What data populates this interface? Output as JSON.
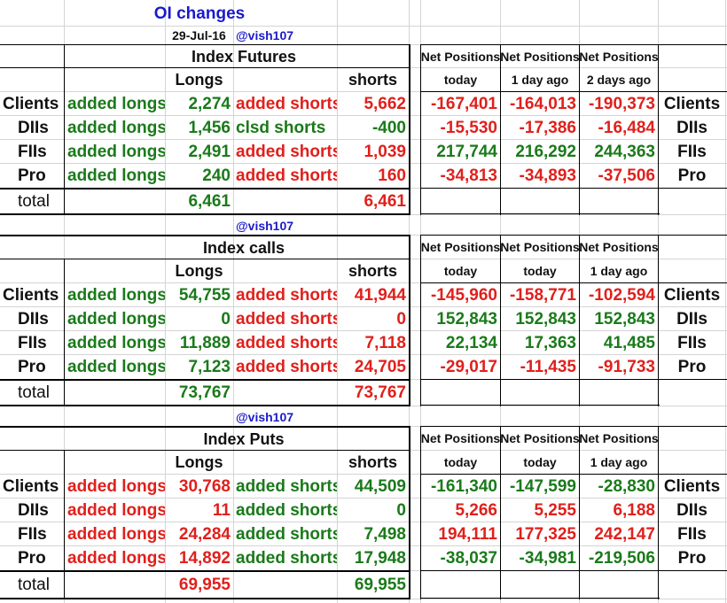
{
  "title": "OI changes",
  "date": "29-Jul-16",
  "handle": "@vish107",
  "colors": {
    "green": "#1a7a1a",
    "red": "#e0201c",
    "blue": "#1a1acc"
  },
  "sections": [
    {
      "name": "Index Futures",
      "longs_header": "Longs",
      "shorts_header": "shorts",
      "np_header": "Net Positions",
      "np_sub": [
        "today",
        "1 day ago",
        "2 days ago"
      ],
      "rows": [
        {
          "label": "Clients",
          "long_type": "added longs",
          "long_val": "2,274",
          "long_color": "green",
          "short_type": "added shorts",
          "short_val": "5,662",
          "short_color": "red",
          "np": [
            "-167,401",
            "-164,013",
            "-190,373"
          ],
          "np_colors": [
            "red",
            "red",
            "red"
          ]
        },
        {
          "label": "DIIs",
          "long_type": "added longs",
          "long_val": "1,456",
          "long_color": "green",
          "short_type": "clsd shorts",
          "short_val": "-400",
          "short_color": "green",
          "np": [
            "-15,530",
            "-17,386",
            "-16,484"
          ],
          "np_colors": [
            "red",
            "red",
            "red"
          ]
        },
        {
          "label": "FIIs",
          "long_type": "added longs",
          "long_val": "2,491",
          "long_color": "green",
          "short_type": "added shorts",
          "short_val": "1,039",
          "short_color": "red",
          "np": [
            "217,744",
            "216,292",
            "244,363"
          ],
          "np_colors": [
            "green",
            "green",
            "green"
          ]
        },
        {
          "label": "Pro",
          "long_type": "added longs",
          "long_val": "240",
          "long_color": "green",
          "short_type": "added shorts",
          "short_val": "160",
          "short_color": "red",
          "np": [
            "-34,813",
            "-34,893",
            "-37,506"
          ],
          "np_colors": [
            "red",
            "red",
            "red"
          ]
        }
      ],
      "total_label": "total",
      "total_long": "6,461",
      "total_long_color": "green",
      "total_short": "6,461",
      "total_short_color": "red"
    },
    {
      "name": "Index calls",
      "longs_header": "Longs",
      "shorts_header": "shorts",
      "np_header": "Net Positions",
      "np_sub": [
        "today",
        "today",
        "1 day ago"
      ],
      "rows": [
        {
          "label": "Clients",
          "long_type": "added longs",
          "long_val": "54,755",
          "long_color": "green",
          "short_type": "added shorts",
          "short_val": "41,944",
          "short_color": "red",
          "np": [
            "-145,960",
            "-158,771",
            "-102,594"
          ],
          "np_colors": [
            "red",
            "red",
            "red"
          ]
        },
        {
          "label": "DIIs",
          "long_type": "added longs",
          "long_val": "0",
          "long_color": "green",
          "short_type": "added shorts",
          "short_val": "0",
          "short_color": "red",
          "np": [
            "152,843",
            "152,843",
            "152,843"
          ],
          "np_colors": [
            "green",
            "green",
            "green"
          ]
        },
        {
          "label": "FIIs",
          "long_type": "added longs",
          "long_val": "11,889",
          "long_color": "green",
          "short_type": "added shorts",
          "short_val": "7,118",
          "short_color": "red",
          "np": [
            "22,134",
            "17,363",
            "41,485"
          ],
          "np_colors": [
            "green",
            "green",
            "green"
          ]
        },
        {
          "label": "Pro",
          "long_type": "added longs",
          "long_val": "7,123",
          "long_color": "green",
          "short_type": "added shorts",
          "short_val": "24,705",
          "short_color": "red",
          "np": [
            "-29,017",
            "-11,435",
            "-91,733"
          ],
          "np_colors": [
            "red",
            "red",
            "red"
          ]
        }
      ],
      "total_label": "total",
      "total_long": "73,767",
      "total_long_color": "green",
      "total_short": "73,767",
      "total_short_color": "red"
    },
    {
      "name": "Index Puts",
      "longs_header": "Longs",
      "shorts_header": "shorts",
      "np_header": "Net Positions",
      "np_sub": [
        "today",
        "today",
        "1 day ago"
      ],
      "rows": [
        {
          "label": "Clients",
          "long_type": "added longs",
          "long_val": "30,768",
          "long_color": "red",
          "short_type": "added shorts",
          "short_val": "44,509",
          "short_color": "green",
          "np": [
            "-161,340",
            "-147,599",
            "-28,830"
          ],
          "np_colors": [
            "green",
            "green",
            "green"
          ]
        },
        {
          "label": "DIIs",
          "long_type": "added longs",
          "long_val": "11",
          "long_color": "red",
          "short_type": "added shorts",
          "short_val": "0",
          "short_color": "green",
          "np": [
            "5,266",
            "5,255",
            "6,188"
          ],
          "np_colors": [
            "red",
            "red",
            "red"
          ]
        },
        {
          "label": "FIIs",
          "long_type": "added longs",
          "long_val": "24,284",
          "long_color": "red",
          "short_type": "added shorts",
          "short_val": "7,498",
          "short_color": "green",
          "np": [
            "194,111",
            "177,325",
            "242,147"
          ],
          "np_colors": [
            "red",
            "red",
            "red"
          ]
        },
        {
          "label": "Pro",
          "long_type": "added longs",
          "long_val": "14,892",
          "long_color": "red",
          "short_type": "added shorts",
          "short_val": "17,948",
          "short_color": "green",
          "np": [
            "-38,037",
            "-34,981",
            "-219,506"
          ],
          "np_colors": [
            "green",
            "green",
            "green"
          ]
        }
      ],
      "total_label": "total",
      "total_long": "69,955",
      "total_long_color": "red",
      "total_short": "69,955",
      "total_short_color": "green"
    }
  ]
}
